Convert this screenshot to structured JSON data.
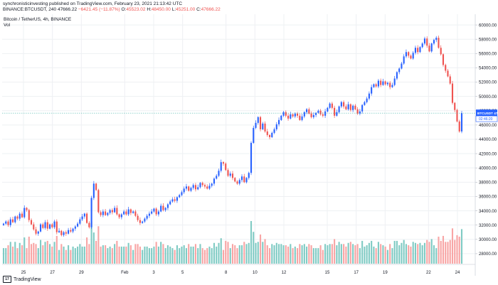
{
  "header": {
    "line1": "synchronisticinvesting published on TradingView.com, February 23, 2021 21:13:42 UTC",
    "symbol": "BINANCE:BTCUSDT, 240",
    "last": "47666.22",
    "change": "−6421.45 (−11.87%)",
    "o_label": "O:",
    "o_value": "45523.02",
    "h_label": "H:",
    "h_value": "48450.00",
    "l_label": "L:",
    "l_value": "45251.00",
    "c_label": "C:",
    "c_value": "47666.22"
  },
  "legend": {
    "title": "Bitcoin / TetherUS, 4h, BINANCE",
    "vol": "Vol"
  },
  "price_tag": {
    "label": "BTCUSDT",
    "value": "47666.22",
    "countdown": "02:46:20",
    "color": "#2962ff"
  },
  "footer": {
    "brand": "TradingView"
  },
  "colors": {
    "up": "#2962ff",
    "down": "#ef5350",
    "vol_up": "#80cbc4",
    "vol_down": "#f8a5a5",
    "grid": "#eef0f3"
  },
  "chart_data": {
    "type": "candlestick",
    "ylim": [
      26500,
      61500
    ],
    "y_ticks": [
      28000,
      30000,
      32000,
      34000,
      36000,
      38000,
      40000,
      42000,
      44000,
      46000,
      48000,
      50000,
      52000,
      54000,
      56000,
      58000,
      60000
    ],
    "y_tick_labels": [
      "28000.00",
      "30000.00",
      "32000.00",
      "34000.00",
      "36000.00",
      "38000.00",
      "40000.00",
      "42000.00",
      "44000.00",
      "46000.00",
      "48000.00",
      "50000.00",
      "52000.00",
      "54000.00",
      "56000.00",
      "58000.00",
      "60000.00"
    ],
    "x_ticks": [
      {
        "label": "25",
        "day": 0
      },
      {
        "label": "27",
        "day": 2
      },
      {
        "label": "29",
        "day": 4
      },
      {
        "label": "Feb",
        "day": 7
      },
      {
        "label": "3",
        "day": 9
      },
      {
        "label": "5",
        "day": 11
      },
      {
        "label": "8",
        "day": 14
      },
      {
        "label": "10",
        "day": 16
      },
      {
        "label": "12",
        "day": 18
      },
      {
        "label": "15",
        "day": 21
      },
      {
        "label": "17",
        "day": 23
      },
      {
        "label": "19",
        "day": 25
      },
      {
        "label": "22",
        "day": 28
      },
      {
        "label": "24",
        "day": 30
      }
    ],
    "closes": [
      32200,
      32500,
      32000,
      32800,
      32400,
      33200,
      32900,
      33600,
      33100,
      34400,
      34100,
      32700,
      32100,
      31400,
      30800,
      31100,
      32100,
      31600,
      32400,
      31500,
      32100,
      31700,
      32500,
      31000,
      31200,
      30600,
      31000,
      30800,
      31300,
      31100,
      31500,
      31800,
      32200,
      32800,
      33200,
      33600,
      32300,
      31700,
      35800,
      37800,
      36900,
      33800,
      33400,
      33900,
      33400,
      33700,
      34100,
      33800,
      34400,
      33500,
      33100,
      33500,
      33900,
      33500,
      34200,
      33700,
      33900,
      33300,
      32700,
      32300,
      32500,
      32900,
      33300,
      33600,
      33900,
      34300,
      33500,
      33900,
      34700,
      34100,
      34400,
      34900,
      35300,
      35600,
      35400,
      35900,
      36200,
      36600,
      37100,
      37400,
      36800,
      37200,
      37600,
      37000,
      37300,
      37900,
      37600,
      37400,
      37100,
      37500,
      37800,
      38500,
      38900,
      39600,
      40800,
      40600,
      39700,
      38900,
      39200,
      38600,
      38100,
      37800,
      38300,
      38800,
      38000,
      38600,
      39300,
      43500,
      45600,
      46300,
      47100,
      45400,
      46200,
      45100,
      44600,
      44300,
      44900,
      45400,
      46100,
      46700,
      47300,
      47800,
      47300,
      46900,
      47500,
      47200,
      47600,
      47300,
      46700,
      47200,
      47800,
      48200,
      47600,
      47100,
      47400,
      47700,
      48000,
      47500,
      47300,
      47900,
      48400,
      49000,
      48400,
      47300,
      47800,
      48600,
      49200,
      48600,
      48200,
      48900,
      48100,
      48700,
      48200,
      47600,
      47900,
      48800,
      49200,
      49700,
      50400,
      51300,
      51700,
      51400,
      52200,
      51600,
      52100,
      51700,
      51900,
      51300,
      51600,
      52500,
      53400,
      53900,
      54600,
      55600,
      56200,
      55700,
      55300,
      56100,
      56800,
      56200,
      56900,
      57400,
      58100,
      57100,
      56300,
      57400,
      57900,
      58200,
      56800,
      55900,
      54400,
      53600,
      52800,
      51800,
      49100,
      48100,
      46500,
      45100,
      47666
    ]
  }
}
